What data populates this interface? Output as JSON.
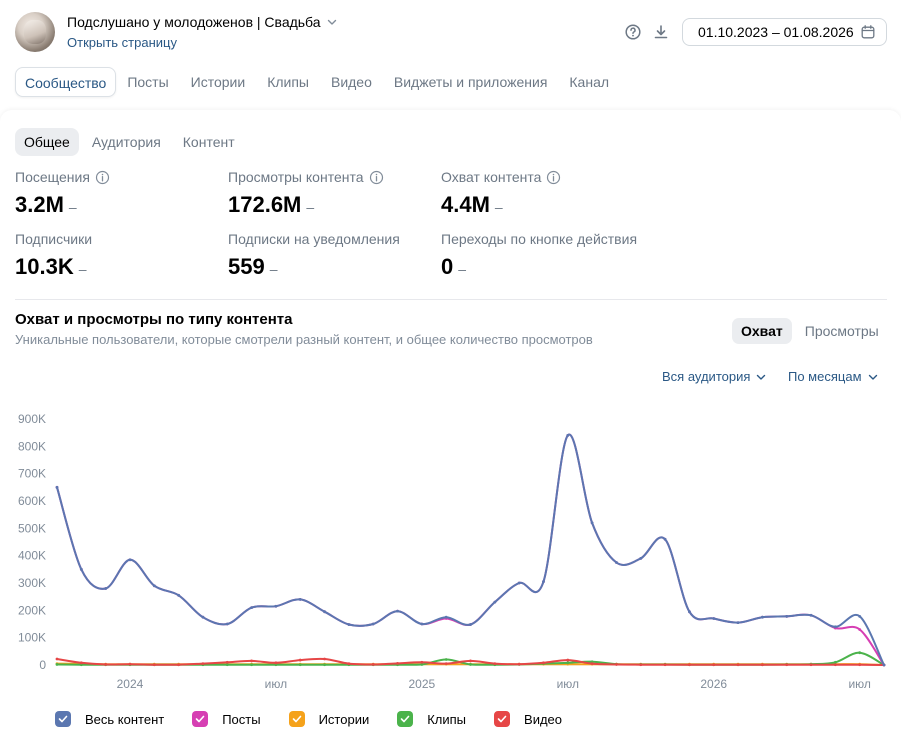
{
  "header": {
    "community_name": "Подслушано у молодоженов | Свадьба",
    "open_page": "Открыть страницу",
    "date_range": "01.10.2023 – 01.08.2026"
  },
  "tabs": [
    {
      "label": "Сообщество",
      "active": true
    },
    {
      "label": "Посты",
      "active": false
    },
    {
      "label": "Истории",
      "active": false
    },
    {
      "label": "Клипы",
      "active": false
    },
    {
      "label": "Видео",
      "active": false
    },
    {
      "label": "Виджеты и приложения",
      "active": false
    },
    {
      "label": "Канал",
      "active": false
    }
  ],
  "subtabs": [
    {
      "label": "Общее",
      "active": true
    },
    {
      "label": "Аудитория",
      "active": false
    },
    {
      "label": "Контент",
      "active": false
    }
  ],
  "metrics": [
    {
      "label": "Посещения",
      "value": "3.2M",
      "trend": "–",
      "info": true
    },
    {
      "label": "Просмотры контента",
      "value": "172.6M",
      "trend": "–",
      "info": true
    },
    {
      "label": "Охват контента",
      "value": "4.4M",
      "trend": "–",
      "info": true
    },
    {
      "label": "Подписчики",
      "value": "10.3K",
      "trend": "–",
      "info": false
    },
    {
      "label": "Подписки на уведомления",
      "value": "559",
      "trend": "–",
      "info": false
    },
    {
      "label": "Переходы по кнопке действия",
      "value": "0",
      "trend": "–",
      "info": false
    }
  ],
  "chart_section": {
    "title": "Охват и просмотры по типу контента",
    "subtitle": "Уникальные пользователи, которые смотрели разный контент, и общее количество просмотров",
    "mode_buttons": [
      {
        "label": "Охват",
        "active": true
      },
      {
        "label": "Просмотры",
        "active": false
      }
    ],
    "audience_dropdown": "Вся аудитория",
    "period_dropdown": "По месяцам"
  },
  "colors": {
    "accent": "#2a5885",
    "all_content": "#5b77b0",
    "posts": "#d63fb3",
    "stories": "#f5a21b",
    "clips": "#4bb34b",
    "video": "#e64646"
  },
  "chart_data": {
    "type": "line",
    "x": [
      "2023-10",
      "2023-11",
      "2023-12",
      "2024-01",
      "2024-02",
      "2024-03",
      "2024-04",
      "2024-05",
      "2024-06",
      "2024-07",
      "2024-08",
      "2024-09",
      "2024-10",
      "2024-11",
      "2024-12",
      "2025-01",
      "2025-02",
      "2025-03",
      "2025-04",
      "2025-05",
      "2025-06",
      "2025-07",
      "2025-08",
      "2025-09",
      "2025-10",
      "2025-11",
      "2025-12",
      "2026-01",
      "2026-02",
      "2026-03",
      "2026-04",
      "2026-05",
      "2026-06",
      "2026-07",
      "2026-08"
    ],
    "x_tick_labels": [
      {
        "x": "2024-01",
        "label": "2024"
      },
      {
        "x": "2024-07",
        "label": "июл"
      },
      {
        "x": "2025-01",
        "label": "2025"
      },
      {
        "x": "2025-07",
        "label": "июл"
      },
      {
        "x": "2026-01",
        "label": "2026"
      },
      {
        "x": "2026-07",
        "label": "июл"
      }
    ],
    "ylim": [
      0,
      900000
    ],
    "y_ticks": [
      0,
      100000,
      200000,
      300000,
      400000,
      500000,
      600000,
      700000,
      800000,
      900000
    ],
    "y_tick_labels": [
      "0",
      "100K",
      "200K",
      "300K",
      "400K",
      "500K",
      "600K",
      "700K",
      "800K",
      "900K"
    ],
    "series": [
      {
        "name": "Весь контент",
        "color": "#5b77b0",
        "values": [
          650000,
          350000,
          280000,
          385000,
          290000,
          255000,
          175000,
          150000,
          210000,
          215000,
          240000,
          195000,
          148000,
          150000,
          197000,
          150000,
          175000,
          148000,
          230000,
          300000,
          305000,
          840000,
          520000,
          375000,
          390000,
          460000,
          195000,
          170000,
          155000,
          175000,
          178000,
          182000,
          140000,
          178000,
          0
        ]
      },
      {
        "name": "Посты",
        "color": "#d63fb3",
        "values": [
          650000,
          350000,
          280000,
          385000,
          290000,
          255000,
          175000,
          150000,
          210000,
          215000,
          240000,
          195000,
          148000,
          150000,
          197000,
          150000,
          170000,
          148000,
          230000,
          300000,
          305000,
          840000,
          520000,
          375000,
          390000,
          460000,
          195000,
          170000,
          155000,
          175000,
          178000,
          182000,
          135000,
          130000,
          0
        ]
      },
      {
        "name": "Истории",
        "color": "#f5a21b",
        "values": [
          5000,
          4000,
          3000,
          3000,
          3000,
          3000,
          3000,
          3000,
          3000,
          3000,
          3000,
          3000,
          3000,
          3000,
          3000,
          3000,
          3000,
          3000,
          3000,
          3000,
          3000,
          3000,
          3000,
          3000,
          3000,
          3000,
          3000,
          3000,
          3000,
          3000,
          3000,
          3000,
          3000,
          3000,
          0
        ]
      },
      {
        "name": "Клипы",
        "color": "#4bb34b",
        "values": [
          2000,
          1000,
          1000,
          1000,
          1000,
          1000,
          1000,
          1000,
          1000,
          1000,
          1000,
          1000,
          1000,
          1000,
          1000,
          2000,
          20000,
          2000,
          1000,
          2000,
          5000,
          8000,
          12000,
          3000,
          2000,
          2000,
          1000,
          1000,
          1000,
          1000,
          2000,
          3000,
          10000,
          45000,
          0
        ]
      },
      {
        "name": "Видео",
        "color": "#e64646",
        "values": [
          22000,
          8000,
          2000,
          3000,
          1000,
          1000,
          5000,
          10000,
          15000,
          8000,
          18000,
          22000,
          5000,
          2000,
          6000,
          10000,
          5000,
          15000,
          5000,
          3000,
          8000,
          18000,
          5000,
          2000,
          1000,
          1000,
          1000,
          1000,
          1000,
          1000,
          1000,
          1000,
          1000,
          1000,
          0
        ]
      }
    ]
  }
}
